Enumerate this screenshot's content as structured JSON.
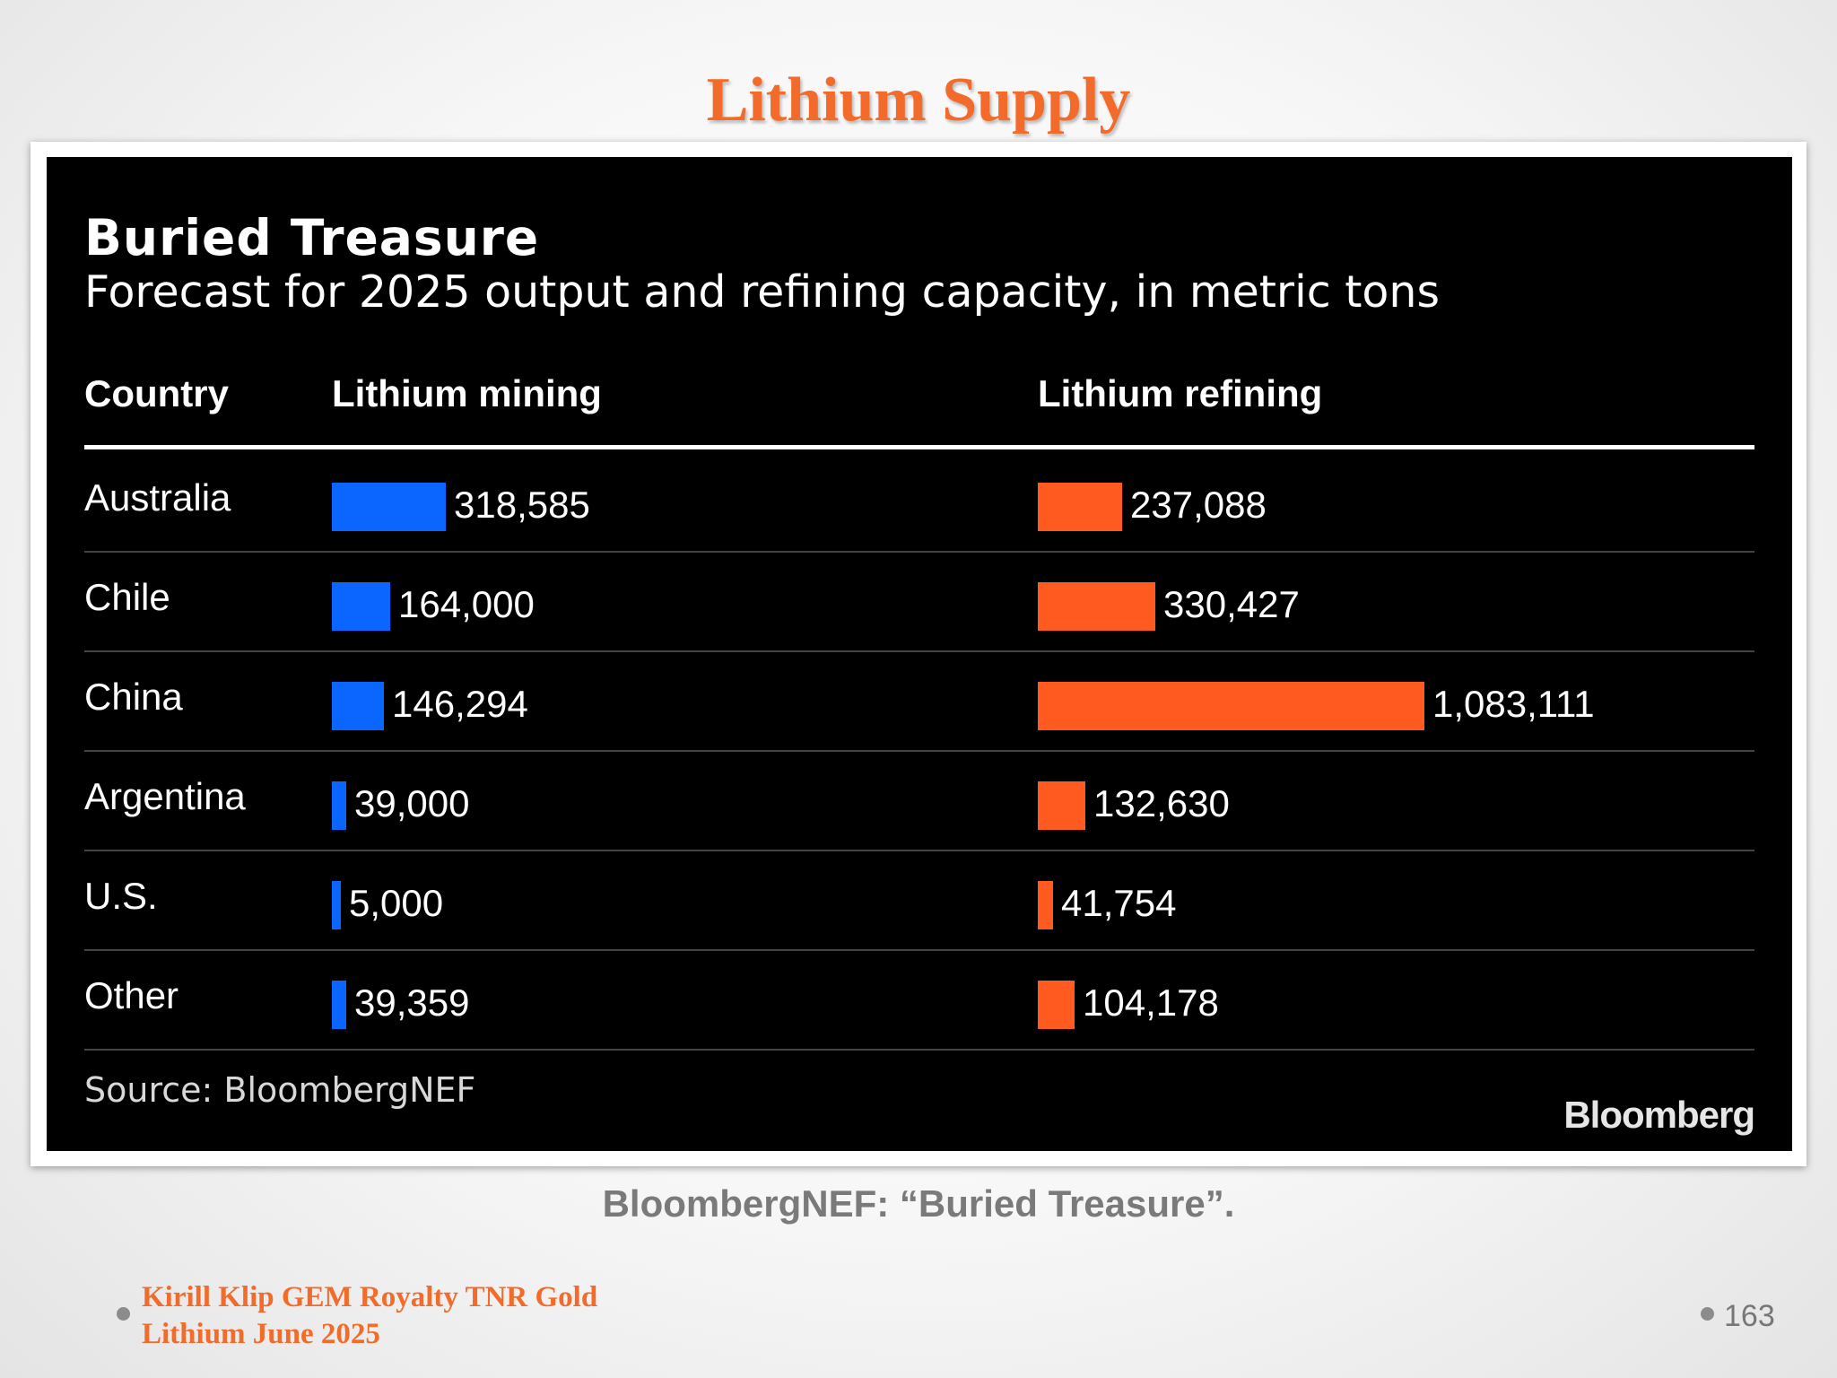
{
  "slide": {
    "title": "Lithium Supply",
    "caption": "BloombergNEF: “Buried Treasure”.",
    "footer_line1": "Kirill Klip GEM Royalty TNR Gold",
    "footer_line2": "Lithium June 2025",
    "page_number": "163"
  },
  "chart_data": {
    "type": "bar",
    "title": "Buried Treasure",
    "subtitle": "Forecast for 2025 output and refining capacity, in metric tons",
    "category_header": "Country",
    "categories": [
      "Australia",
      "Chile",
      "China",
      "Argentina",
      "U.S.",
      "Other"
    ],
    "series": [
      {
        "name": "Lithium mining",
        "color": "#0a66ff",
        "values": [
          318585,
          164000,
          146294,
          39000,
          5000,
          39359
        ],
        "labels": [
          "318,585",
          "164,000",
          "146,294",
          "39,000",
          "5,000",
          "39,359"
        ]
      },
      {
        "name": "Lithium refining",
        "color": "#ff5a1f",
        "values": [
          237088,
          330427,
          1083111,
          132630,
          41754,
          104178
        ],
        "labels": [
          "237,088",
          "330,427",
          "1,083,111",
          "132,630",
          "41,754",
          "104,178"
        ]
      }
    ],
    "source": "Source: BloombergNEF",
    "brand": "Bloomberg"
  }
}
